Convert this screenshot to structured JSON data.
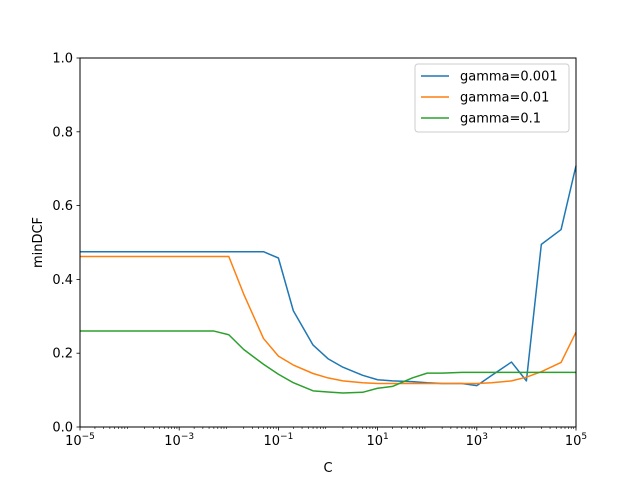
{
  "chart_data": {
    "type": "line",
    "xlabel": "C",
    "ylabel": "minDCF",
    "xscale": "log",
    "xlim": [
      1e-05,
      100000
    ],
    "ylim": [
      0,
      1
    ],
    "grid": false,
    "legend_position": "upper-right",
    "x_ticks": [
      {
        "value": 1e-05,
        "base": "10",
        "exp": "−5"
      },
      {
        "value": 0.001,
        "base": "10",
        "exp": "−3"
      },
      {
        "value": 0.1,
        "base": "10",
        "exp": "−1"
      },
      {
        "value": 10,
        "base": "10",
        "exp": "1"
      },
      {
        "value": 1000,
        "base": "10",
        "exp": "3"
      },
      {
        "value": 100000,
        "base": "10",
        "exp": "5"
      }
    ],
    "y_ticks": [
      {
        "value": 0,
        "label": "0.0"
      },
      {
        "value": 0.2,
        "label": "0.2"
      },
      {
        "value": 0.4,
        "label": "0.4"
      },
      {
        "value": 0.6,
        "label": "0.6"
      },
      {
        "value": 0.8,
        "label": "0.8"
      },
      {
        "value": 1,
        "label": "1.0"
      }
    ],
    "series": [
      {
        "name": "gamma=0.001",
        "color": "#1f77b4",
        "x": [
          1e-05,
          0.0001,
          0.001,
          0.01,
          0.05,
          0.1,
          0.2,
          0.5,
          1,
          2,
          5,
          10,
          20,
          50,
          100,
          200,
          500,
          1000,
          2000,
          5000,
          10000,
          20000,
          50000,
          100000
        ],
        "y": [
          0.475,
          0.475,
          0.475,
          0.475,
          0.475,
          0.458,
          0.315,
          0.222,
          0.185,
          0.162,
          0.14,
          0.128,
          0.125,
          0.123,
          0.12,
          0.118,
          0.118,
          0.112,
          0.14,
          0.176,
          0.125,
          0.495,
          0.535,
          0.708
        ]
      },
      {
        "name": "gamma=0.01",
        "color": "#ff7f0e",
        "x": [
          1e-05,
          0.0001,
          0.001,
          0.01,
          0.02,
          0.05,
          0.1,
          0.2,
          0.5,
          1,
          2,
          5,
          10,
          20,
          50,
          100,
          200,
          500,
          1000,
          2000,
          5000,
          10000,
          20000,
          50000,
          100000
        ],
        "y": [
          0.462,
          0.462,
          0.462,
          0.462,
          0.36,
          0.24,
          0.192,
          0.168,
          0.145,
          0.133,
          0.125,
          0.12,
          0.118,
          0.118,
          0.118,
          0.118,
          0.118,
          0.118,
          0.118,
          0.12,
          0.125,
          0.135,
          0.15,
          0.175,
          0.257
        ]
      },
      {
        "name": "gamma=0.1",
        "color": "#2ca02c",
        "x": [
          1e-05,
          0.0001,
          0.001,
          0.005,
          0.01,
          0.02,
          0.05,
          0.1,
          0.2,
          0.5,
          1,
          2,
          5,
          10,
          20,
          50,
          100,
          200,
          500,
          1000,
          10000,
          100000
        ],
        "y": [
          0.26,
          0.26,
          0.26,
          0.26,
          0.25,
          0.21,
          0.17,
          0.143,
          0.12,
          0.098,
          0.095,
          0.092,
          0.094,
          0.105,
          0.11,
          0.133,
          0.146,
          0.146,
          0.148,
          0.148,
          0.148,
          0.148
        ]
      }
    ]
  }
}
